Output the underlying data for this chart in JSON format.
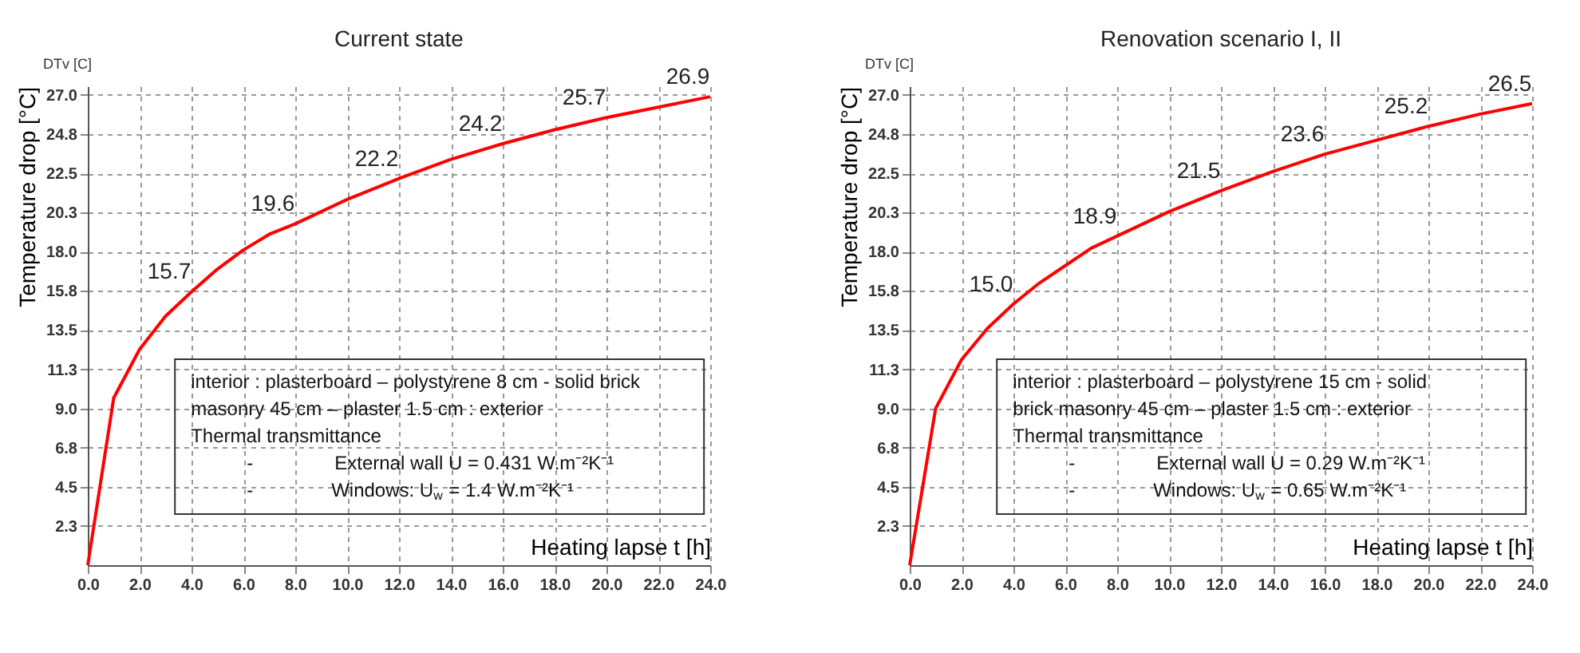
{
  "chart_data": [
    {
      "type": "line",
      "title": "Current state",
      "xlabel": "Heating lapse t [h]",
      "ylabel": "Temperature drop [°C]",
      "x": [
        0,
        1,
        2,
        3,
        4,
        5,
        6,
        7,
        8,
        10,
        12,
        14,
        16,
        18,
        20,
        22,
        24
      ],
      "series": [
        {
          "color": "#ff0000",
          "values": [
            0,
            9.6,
            12.4,
            14.3,
            15.7,
            17.0,
            18.1,
            19.0,
            19.6,
            21.0,
            22.2,
            23.3,
            24.2,
            25.0,
            25.7,
            26.3,
            26.9
          ],
          "value_labels": [
            null,
            null,
            null,
            null,
            "15.7",
            null,
            null,
            null,
            "19.6",
            null,
            "22.2",
            null,
            "24.2",
            null,
            "25.7",
            null,
            "26.9"
          ]
        }
      ],
      "xlim": [
        0,
        24
      ],
      "xticks": [
        {
          "value": 0,
          "label": "0.0"
        },
        {
          "value": 2,
          "label": "2.0"
        },
        {
          "value": 4,
          "label": "4.0"
        },
        {
          "value": 6,
          "label": "6.0"
        },
        {
          "value": 8,
          "label": "8.0"
        },
        {
          "value": 10,
          "label": "10.0"
        },
        {
          "value": 12,
          "label": "12.0"
        },
        {
          "value": 14,
          "label": "14.0"
        },
        {
          "value": 16,
          "label": "16.0"
        },
        {
          "value": 18,
          "label": "18.0"
        },
        {
          "value": 20,
          "label": "20.0"
        },
        {
          "value": 22,
          "label": "22.0"
        },
        {
          "value": 24,
          "label": "24.0"
        }
      ],
      "ylim": [
        0,
        27.5
      ],
      "yticks": [
        {
          "value": 2.25,
          "label": "2.3"
        },
        {
          "value": 4.5,
          "label": "4.5"
        },
        {
          "value": 6.75,
          "label": "6.8"
        },
        {
          "value": 9,
          "label": "9.0"
        },
        {
          "value": 11.25,
          "label": "11.3"
        },
        {
          "value": 13.5,
          "label": "13.5"
        },
        {
          "value": 15.75,
          "label": "15.8"
        },
        {
          "value": 18,
          "label": "18.0"
        },
        {
          "value": 20.25,
          "label": "20.3"
        },
        {
          "value": 22.5,
          "label": "22.5"
        },
        {
          "value": 24.75,
          "label": "24.8"
        },
        {
          "value": 27,
          "label": "27.0"
        }
      ],
      "grid": true,
      "marker": "none",
      "annotations": [
        "DTv [C]",
        "interior : plasterboard – polystyrene 8 cm - solid brick",
        "masonry 45 cm – plaster 1.5 cm : exterior",
        "Thermal transmittance",
        "- External wall U = 0.431 W.m⁻²K⁻¹",
        "- Windows: U$_{w}$ = 1.4 W.m⁻²K⁻¹"
      ]
    },
    {
      "type": "line",
      "title": "Renovation scenario I, II",
      "xlabel": "Heating lapse t [h]",
      "ylabel": "Temperature drop [°C]",
      "x": [
        0,
        1,
        2,
        3,
        4,
        5,
        6,
        7,
        8,
        10,
        12,
        14,
        16,
        18,
        20,
        22,
        24
      ],
      "series": [
        {
          "color": "#ff0000",
          "values": [
            0,
            9.0,
            11.8,
            13.6,
            15.0,
            16.2,
            17.2,
            18.2,
            18.9,
            20.3,
            21.5,
            22.6,
            23.6,
            24.4,
            25.2,
            25.9,
            26.5
          ],
          "value_labels": [
            null,
            null,
            null,
            null,
            "15.0",
            null,
            null,
            null,
            "18.9",
            null,
            "21.5",
            null,
            "23.6",
            null,
            "25.2",
            null,
            "26.5"
          ]
        }
      ],
      "xlim": [
        0,
        24
      ],
      "xticks": [
        {
          "value": 0,
          "label": "0.0"
        },
        {
          "value": 2,
          "label": "2.0"
        },
        {
          "value": 4,
          "label": "4.0"
        },
        {
          "value": 6,
          "label": "6.0"
        },
        {
          "value": 8,
          "label": "8.0"
        },
        {
          "value": 10,
          "label": "10.0"
        },
        {
          "value": 12,
          "label": "12.0"
        },
        {
          "value": 14,
          "label": "14.0"
        },
        {
          "value": 16,
          "label": "16.0"
        },
        {
          "value": 18,
          "label": "18.0"
        },
        {
          "value": 20,
          "label": "20.0"
        },
        {
          "value": 22,
          "label": "22.0"
        },
        {
          "value": 24,
          "label": "24.0"
        }
      ],
      "ylim": [
        0,
        27.5
      ],
      "yticks": [
        {
          "value": 2.25,
          "label": "2.3"
        },
        {
          "value": 4.5,
          "label": "4.5"
        },
        {
          "value": 6.75,
          "label": "6.8"
        },
        {
          "value": 9,
          "label": "9.0"
        },
        {
          "value": 11.25,
          "label": "11.3"
        },
        {
          "value": 13.5,
          "label": "13.5"
        },
        {
          "value": 15.75,
          "label": "15.8"
        },
        {
          "value": 18,
          "label": "18.0"
        },
        {
          "value": 20.25,
          "label": "20.3"
        },
        {
          "value": 22.5,
          "label": "22.5"
        },
        {
          "value": 24.75,
          "label": "24.8"
        },
        {
          "value": 27,
          "label": "27.0"
        }
      ],
      "grid": true,
      "marker": "none",
      "annotations": [
        "DTv [C]",
        "interior : plasterboard – polystyrene 15 cm - solid",
        "brick masonry 45 cm – plaster 1.5 cm : exterior",
        "Thermal transmittance",
        "- External wall U = 0.29 W.m⁻²K⁻¹",
        "- Windows: U$_{w}$ = 0.65 W.m⁻²K⁻¹"
      ]
    }
  ]
}
